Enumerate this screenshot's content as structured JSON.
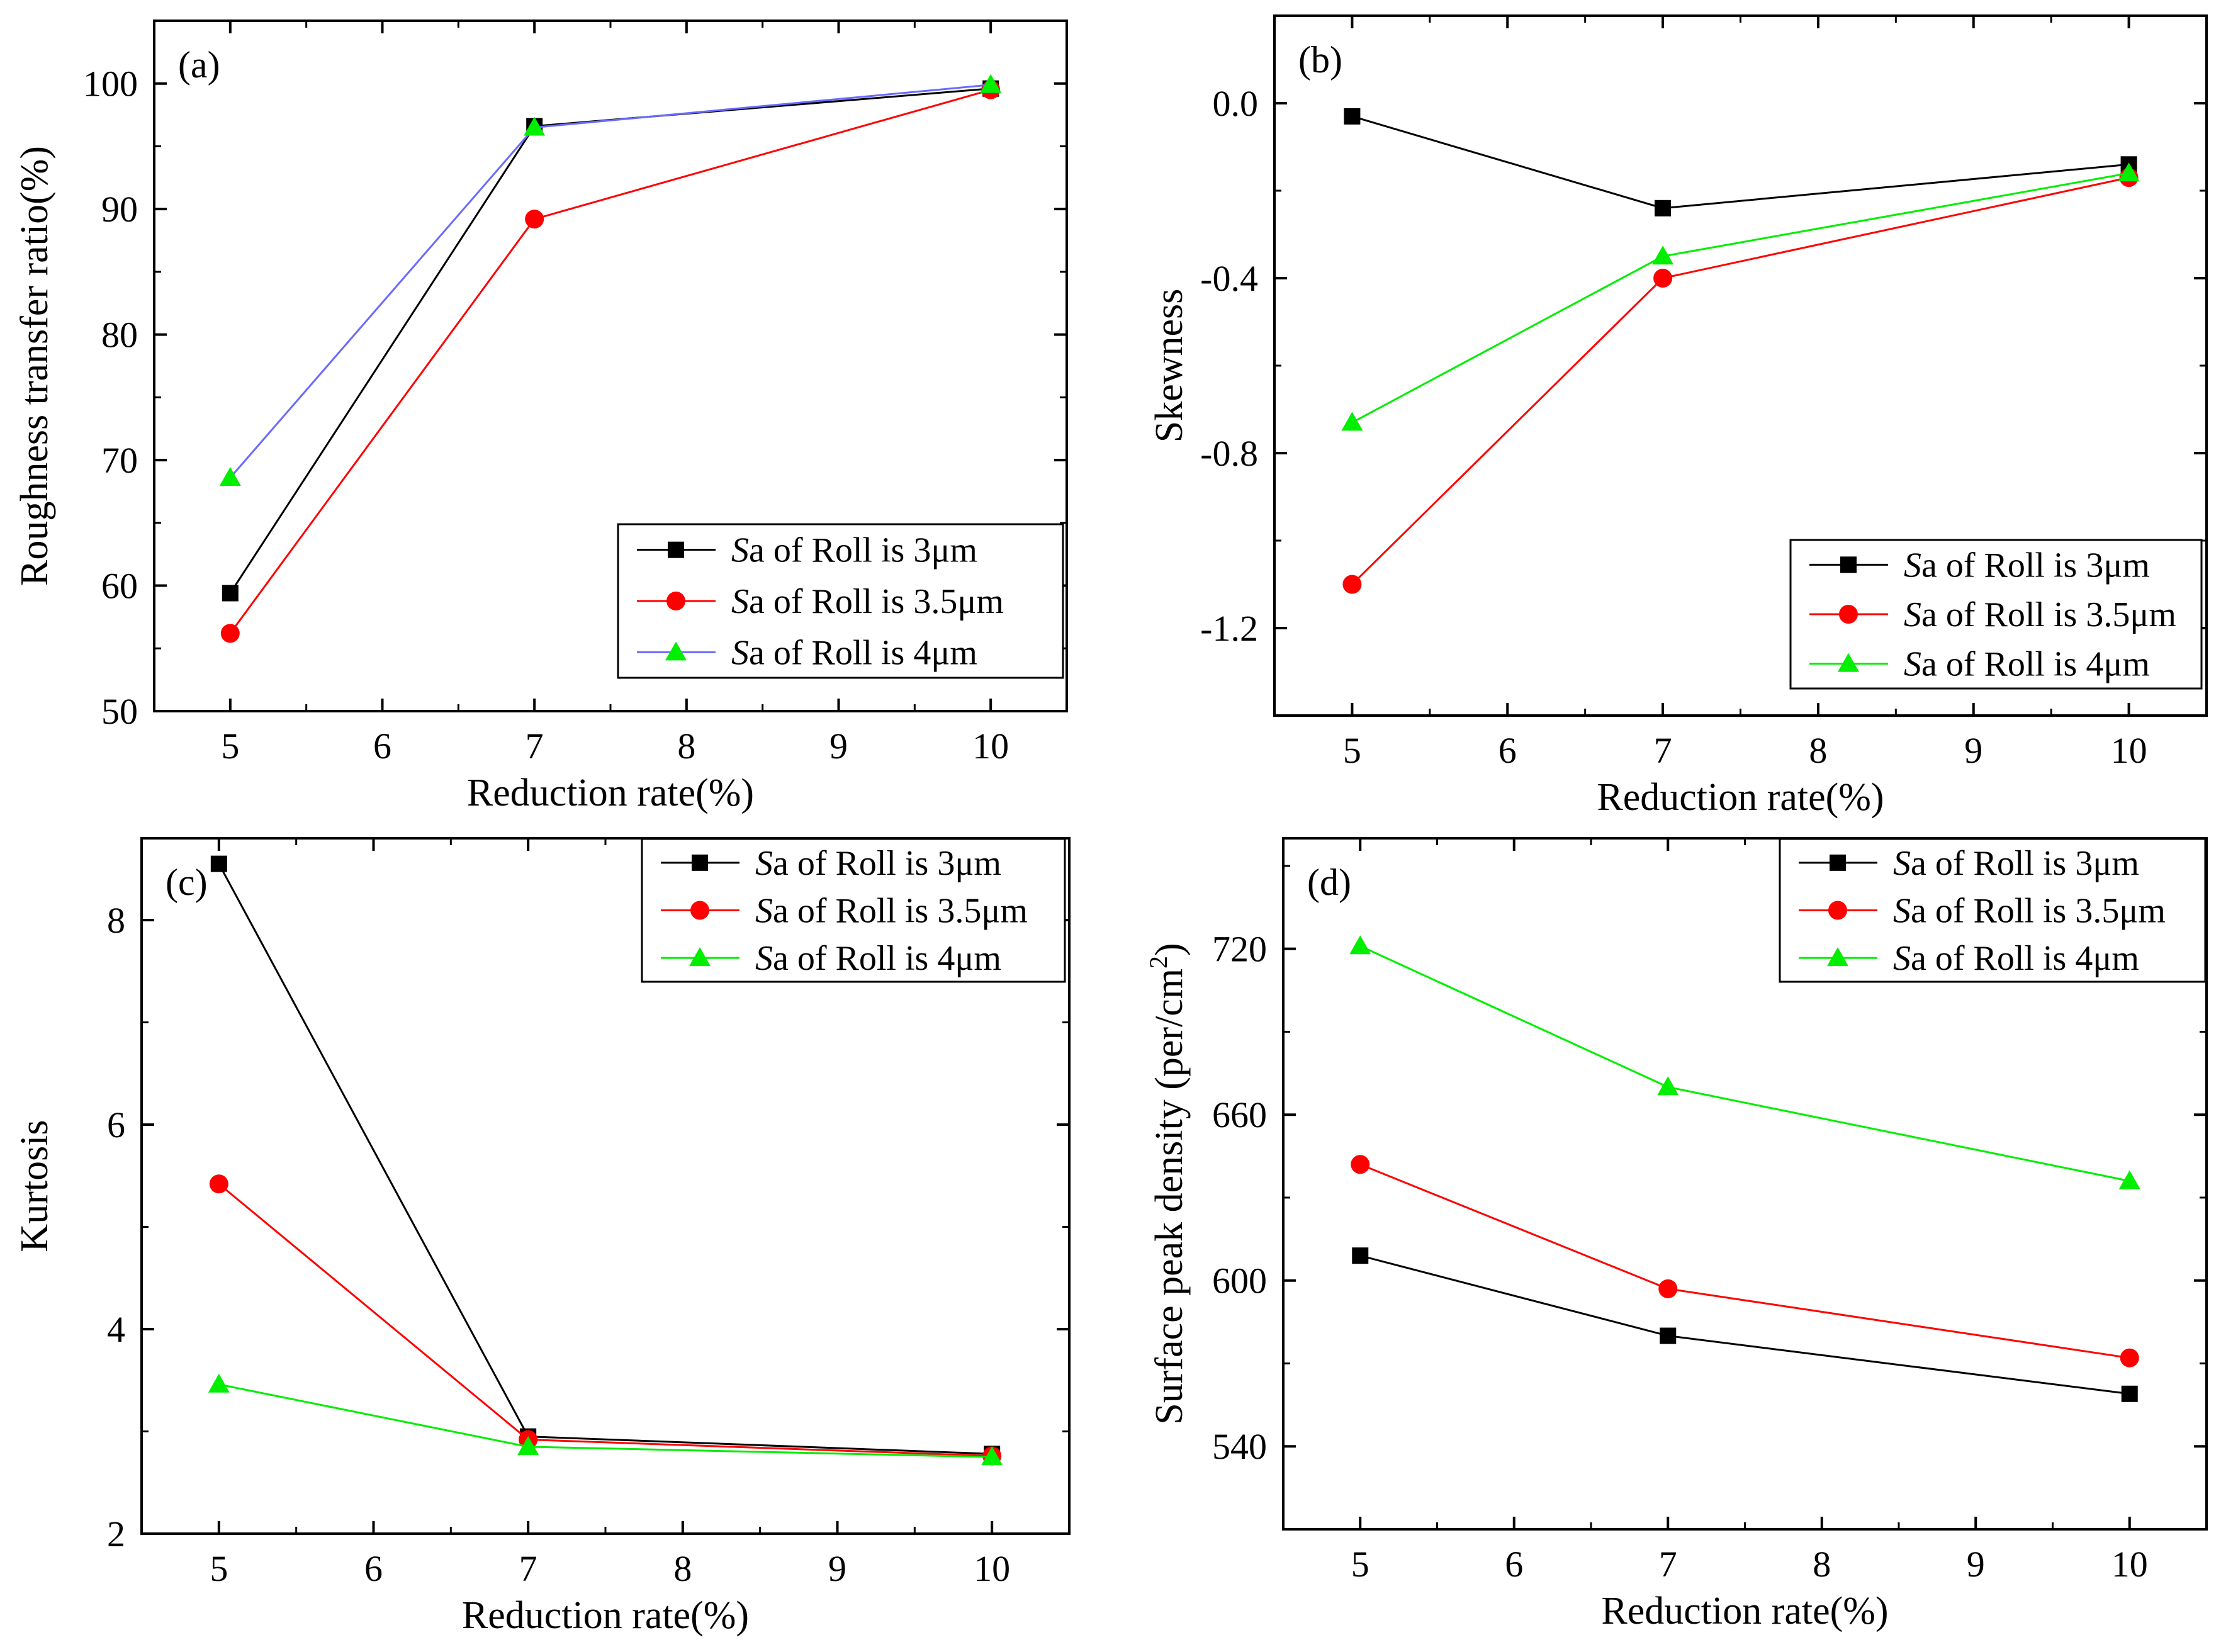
{
  "series_styles": [
    {
      "color": "#000000",
      "marker_color": "#000000",
      "marker": "square"
    },
    {
      "color": "#ff0000",
      "marker_color": "#ff0000",
      "marker": "circle"
    },
    {
      "color": "#00ee00",
      "marker_color": "#00ee00",
      "marker": "triangle"
    }
  ],
  "chart_data": [
    {
      "type": "line",
      "panel_label": "(a)",
      "xlabel": "Reduction rate(%)",
      "ylabel": "Roughness transfer ratio(%)",
      "xlim": [
        4.5,
        10.5
      ],
      "ylim": [
        50,
        105
      ],
      "x_ticks": [
        5,
        6,
        7,
        8,
        9,
        10
      ],
      "x_tick_labels": [
        "5",
        "6",
        "7",
        "8",
        "9",
        "10"
      ],
      "y_ticks": [
        50,
        60,
        70,
        80,
        90,
        100
      ],
      "y_tick_labels": [
        "50",
        "60",
        "70",
        "80",
        "90",
        "100"
      ],
      "legend_position": "bottom-right",
      "x": [
        5,
        7,
        10
      ],
      "series": [
        {
          "name_italic": "S",
          "name_rest": "a of Roll is 3μm",
          "values": [
            59.4,
            96.6,
            99.6
          ],
          "color": "#000000",
          "marker": "square"
        },
        {
          "name_italic": "S",
          "name_rest": "a of Roll is 3.5μm",
          "values": [
            56.2,
            89.2,
            99.5
          ],
          "color": "#ff0000",
          "marker": "circle"
        },
        {
          "name_italic": "S",
          "name_rest": "a of Roll is 4μm",
          "values": [
            68.6,
            96.5,
            99.9
          ],
          "color": "#6a6aff",
          "marker_color": "#00ee00",
          "marker": "triangle"
        }
      ]
    },
    {
      "type": "line",
      "panel_label": "(b)",
      "xlabel": "Reduction rate(%)",
      "ylabel": "Skewness",
      "xlim": [
        4.5,
        10.5
      ],
      "ylim": [
        -1.4,
        0.2
      ],
      "x_ticks": [
        5,
        6,
        7,
        8,
        9,
        10
      ],
      "x_tick_labels": [
        "5",
        "6",
        "7",
        "8",
        "9",
        "10"
      ],
      "y_ticks": [
        0.0,
        -0.4,
        -0.8,
        -1.2
      ],
      "y_tick_labels": [
        "0.0",
        "-0.4",
        "-0.8",
        "-1.2"
      ],
      "legend_position": "bottom-right",
      "x": [
        5,
        7,
        10
      ],
      "series": [
        {
          "name_italic": "S",
          "name_rest": "a of Roll is 3μm",
          "values": [
            -0.03,
            -0.24,
            -0.14
          ],
          "color": "#000000",
          "marker": "square"
        },
        {
          "name_italic": "S",
          "name_rest": "a of Roll is 3.5μm",
          "values": [
            -1.1,
            -0.4,
            -0.17
          ],
          "color": "#ff0000",
          "marker": "circle"
        },
        {
          "name_italic": "S",
          "name_rest": "a of Roll is 4μm",
          "values": [
            -0.73,
            -0.35,
            -0.16
          ],
          "color": "#00ee00",
          "marker": "triangle"
        }
      ]
    },
    {
      "type": "line",
      "panel_label": "(c)",
      "xlabel": "Reduction rate(%)",
      "ylabel": "Kurtosis",
      "xlim": [
        4.5,
        10.5
      ],
      "ylim": [
        2,
        8.8
      ],
      "x_ticks": [
        5,
        6,
        7,
        8,
        9,
        10
      ],
      "x_tick_labels": [
        "5",
        "6",
        "7",
        "8",
        "9",
        "10"
      ],
      "y_ticks": [
        2,
        4,
        6,
        8
      ],
      "y_tick_labels": [
        "2",
        "4",
        "6",
        "8"
      ],
      "legend_position": "top-right",
      "x": [
        5,
        7,
        10
      ],
      "series": [
        {
          "name_italic": "S",
          "name_rest": "a of Roll is 3μm",
          "values": [
            8.55,
            2.95,
            2.78
          ],
          "color": "#000000",
          "marker": "square"
        },
        {
          "name_italic": "S",
          "name_rest": "a of Roll is 3.5μm",
          "values": [
            5.42,
            2.92,
            2.76
          ],
          "color": "#ff0000",
          "marker": "circle"
        },
        {
          "name_italic": "S",
          "name_rest": "a of Roll is 4μm",
          "values": [
            3.46,
            2.85,
            2.75
          ],
          "color": "#00ee00",
          "marker": "triangle"
        }
      ]
    },
    {
      "type": "line",
      "panel_label": "(d)",
      "xlabel": "Reduction rate(%)",
      "ylabel": "Surface peak density (per/cm",
      "ylabel_sup": "2",
      "ylabel_end": ")",
      "xlim": [
        4.5,
        10.5
      ],
      "ylim": [
        510,
        760
      ],
      "x_ticks": [
        5,
        6,
        7,
        8,
        9,
        10
      ],
      "x_tick_labels": [
        "5",
        "6",
        "7",
        "8",
        "9",
        "10"
      ],
      "y_ticks": [
        540,
        600,
        660,
        720
      ],
      "y_tick_labels": [
        "540",
        "600",
        "660",
        "720"
      ],
      "legend_position": "top-right",
      "x": [
        5,
        7,
        10
      ],
      "series": [
        {
          "name_italic": "S",
          "name_rest": "a of Roll is 3μm",
          "values": [
            609,
            580,
            559
          ],
          "color": "#000000",
          "marker": "square"
        },
        {
          "name_italic": "S",
          "name_rest": "a of Roll is 3.5μm",
          "values": [
            642,
            597,
            572
          ],
          "color": "#ff0000",
          "marker": "circle"
        },
        {
          "name_italic": "S",
          "name_rest": "a of Roll is 4μm",
          "values": [
            721,
            670,
            636
          ],
          "color": "#00ee00",
          "marker": "triangle"
        }
      ]
    }
  ]
}
